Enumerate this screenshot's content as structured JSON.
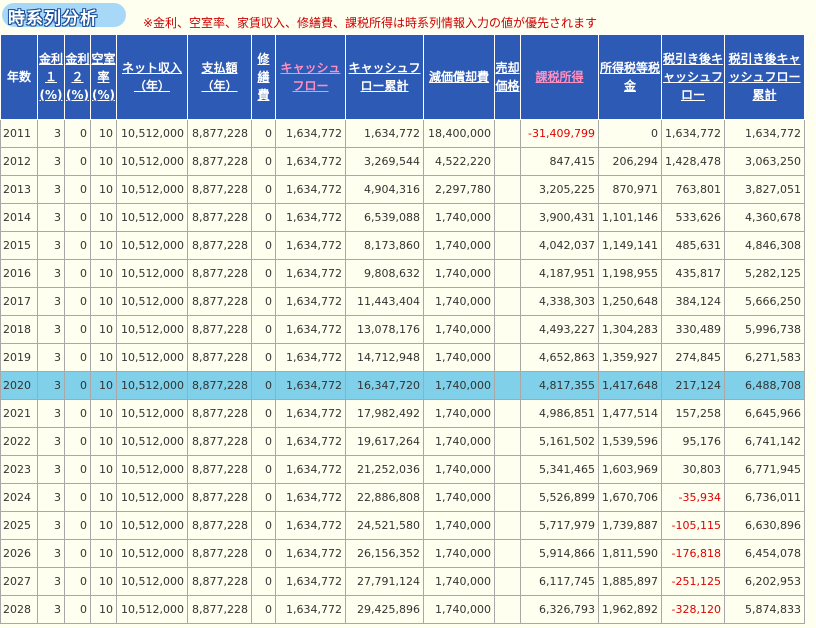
{
  "header": {
    "title": "時系列分析",
    "notice": "※金利、空室率、家賃収入、修繕費、課税所得は時系列情報入力の値が優先されます"
  },
  "columns": [
    {
      "key": "year",
      "label": "年数"
    },
    {
      "key": "rate1",
      "label": "金利１(%)"
    },
    {
      "key": "rate2",
      "label": "金利２(%)"
    },
    {
      "key": "vacancy",
      "label": "空室率(%)"
    },
    {
      "key": "net_income",
      "label": "ネット収入（年）"
    },
    {
      "key": "payment",
      "label": "支払額（年）"
    },
    {
      "key": "repair",
      "label": "修繕費"
    },
    {
      "key": "cash_flow",
      "label": "キャッシュフロー"
    },
    {
      "key": "cash_flow_total",
      "label": "キャッシュフロー累計"
    },
    {
      "key": "depreciation",
      "label": "減価償却費"
    },
    {
      "key": "sale_price",
      "label": "売却価格"
    },
    {
      "key": "taxable_income",
      "label": "課税所得"
    },
    {
      "key": "income_tax",
      "label": "所得税等税金"
    },
    {
      "key": "after_tax_cf",
      "label": "税引き後キャッシュフロー"
    },
    {
      "key": "after_tax_cf_total",
      "label": "税引き後キャッシュフロー累計"
    }
  ],
  "highlight_year": "2020",
  "rows": [
    {
      "year": "2011",
      "rate1": "3",
      "rate2": "0",
      "vacancy": "10",
      "net_income": "10,512,000",
      "payment": "8,877,228",
      "repair": "0",
      "cash_flow": "1,634,772",
      "cash_flow_total": "1,634,772",
      "depreciation": "18,400,000",
      "sale_price": "",
      "taxable_income": "-31,409,799",
      "income_tax": "0",
      "after_tax_cf": "1,634,772",
      "after_tax_cf_total": "1,634,772"
    },
    {
      "year": "2012",
      "rate1": "3",
      "rate2": "0",
      "vacancy": "10",
      "net_income": "10,512,000",
      "payment": "8,877,228",
      "repair": "0",
      "cash_flow": "1,634,772",
      "cash_flow_total": "3,269,544",
      "depreciation": "4,522,220",
      "sale_price": "",
      "taxable_income": "847,415",
      "income_tax": "206,294",
      "after_tax_cf": "1,428,478",
      "after_tax_cf_total": "3,063,250"
    },
    {
      "year": "2013",
      "rate1": "3",
      "rate2": "0",
      "vacancy": "10",
      "net_income": "10,512,000",
      "payment": "8,877,228",
      "repair": "0",
      "cash_flow": "1,634,772",
      "cash_flow_total": "4,904,316",
      "depreciation": "2,297,780",
      "sale_price": "",
      "taxable_income": "3,205,225",
      "income_tax": "870,971",
      "after_tax_cf": "763,801",
      "after_tax_cf_total": "3,827,051"
    },
    {
      "year": "2014",
      "rate1": "3",
      "rate2": "0",
      "vacancy": "10",
      "net_income": "10,512,000",
      "payment": "8,877,228",
      "repair": "0",
      "cash_flow": "1,634,772",
      "cash_flow_total": "6,539,088",
      "depreciation": "1,740,000",
      "sale_price": "",
      "taxable_income": "3,900,431",
      "income_tax": "1,101,146",
      "after_tax_cf": "533,626",
      "after_tax_cf_total": "4,360,678"
    },
    {
      "year": "2015",
      "rate1": "3",
      "rate2": "0",
      "vacancy": "10",
      "net_income": "10,512,000",
      "payment": "8,877,228",
      "repair": "0",
      "cash_flow": "1,634,772",
      "cash_flow_total": "8,173,860",
      "depreciation": "1,740,000",
      "sale_price": "",
      "taxable_income": "4,042,037",
      "income_tax": "1,149,141",
      "after_tax_cf": "485,631",
      "after_tax_cf_total": "4,846,308"
    },
    {
      "year": "2016",
      "rate1": "3",
      "rate2": "0",
      "vacancy": "10",
      "net_income": "10,512,000",
      "payment": "8,877,228",
      "repair": "0",
      "cash_flow": "1,634,772",
      "cash_flow_total": "9,808,632",
      "depreciation": "1,740,000",
      "sale_price": "",
      "taxable_income": "4,187,951",
      "income_tax": "1,198,955",
      "after_tax_cf": "435,817",
      "after_tax_cf_total": "5,282,125"
    },
    {
      "year": "2017",
      "rate1": "3",
      "rate2": "0",
      "vacancy": "10",
      "net_income": "10,512,000",
      "payment": "8,877,228",
      "repair": "0",
      "cash_flow": "1,634,772",
      "cash_flow_total": "11,443,404",
      "depreciation": "1,740,000",
      "sale_price": "",
      "taxable_income": "4,338,303",
      "income_tax": "1,250,648",
      "after_tax_cf": "384,124",
      "after_tax_cf_total": "5,666,250"
    },
    {
      "year": "2018",
      "rate1": "3",
      "rate2": "0",
      "vacancy": "10",
      "net_income": "10,512,000",
      "payment": "8,877,228",
      "repair": "0",
      "cash_flow": "1,634,772",
      "cash_flow_total": "13,078,176",
      "depreciation": "1,740,000",
      "sale_price": "",
      "taxable_income": "4,493,227",
      "income_tax": "1,304,283",
      "after_tax_cf": "330,489",
      "after_tax_cf_total": "5,996,738"
    },
    {
      "year": "2019",
      "rate1": "3",
      "rate2": "0",
      "vacancy": "10",
      "net_income": "10,512,000",
      "payment": "8,877,228",
      "repair": "0",
      "cash_flow": "1,634,772",
      "cash_flow_total": "14,712,948",
      "depreciation": "1,740,000",
      "sale_price": "",
      "taxable_income": "4,652,863",
      "income_tax": "1,359,927",
      "after_tax_cf": "274,845",
      "after_tax_cf_total": "6,271,583"
    },
    {
      "year": "2020",
      "rate1": "3",
      "rate2": "0",
      "vacancy": "10",
      "net_income": "10,512,000",
      "payment": "8,877,228",
      "repair": "0",
      "cash_flow": "1,634,772",
      "cash_flow_total": "16,347,720",
      "depreciation": "1,740,000",
      "sale_price": "",
      "taxable_income": "4,817,355",
      "income_tax": "1,417,648",
      "after_tax_cf": "217,124",
      "after_tax_cf_total": "6,488,708"
    },
    {
      "year": "2021",
      "rate1": "3",
      "rate2": "0",
      "vacancy": "10",
      "net_income": "10,512,000",
      "payment": "8,877,228",
      "repair": "0",
      "cash_flow": "1,634,772",
      "cash_flow_total": "17,982,492",
      "depreciation": "1,740,000",
      "sale_price": "",
      "taxable_income": "4,986,851",
      "income_tax": "1,477,514",
      "after_tax_cf": "157,258",
      "after_tax_cf_total": "6,645,966"
    },
    {
      "year": "2022",
      "rate1": "3",
      "rate2": "0",
      "vacancy": "10",
      "net_income": "10,512,000",
      "payment": "8,877,228",
      "repair": "0",
      "cash_flow": "1,634,772",
      "cash_flow_total": "19,617,264",
      "depreciation": "1,740,000",
      "sale_price": "",
      "taxable_income": "5,161,502",
      "income_tax": "1,539,596",
      "after_tax_cf": "95,176",
      "after_tax_cf_total": "6,741,142"
    },
    {
      "year": "2023",
      "rate1": "3",
      "rate2": "0",
      "vacancy": "10",
      "net_income": "10,512,000",
      "payment": "8,877,228",
      "repair": "0",
      "cash_flow": "1,634,772",
      "cash_flow_total": "21,252,036",
      "depreciation": "1,740,000",
      "sale_price": "",
      "taxable_income": "5,341,465",
      "income_tax": "1,603,969",
      "after_tax_cf": "30,803",
      "after_tax_cf_total": "6,771,945"
    },
    {
      "year": "2024",
      "rate1": "3",
      "rate2": "0",
      "vacancy": "10",
      "net_income": "10,512,000",
      "payment": "8,877,228",
      "repair": "0",
      "cash_flow": "1,634,772",
      "cash_flow_total": "22,886,808",
      "depreciation": "1,740,000",
      "sale_price": "",
      "taxable_income": "5,526,899",
      "income_tax": "1,670,706",
      "after_tax_cf": "-35,934",
      "after_tax_cf_total": "6,736,011"
    },
    {
      "year": "2025",
      "rate1": "3",
      "rate2": "0",
      "vacancy": "10",
      "net_income": "10,512,000",
      "payment": "8,877,228",
      "repair": "0",
      "cash_flow": "1,634,772",
      "cash_flow_total": "24,521,580",
      "depreciation": "1,740,000",
      "sale_price": "",
      "taxable_income": "5,717,979",
      "income_tax": "1,739,887",
      "after_tax_cf": "-105,115",
      "after_tax_cf_total": "6,630,896"
    },
    {
      "year": "2026",
      "rate1": "3",
      "rate2": "0",
      "vacancy": "10",
      "net_income": "10,512,000",
      "payment": "8,877,228",
      "repair": "0",
      "cash_flow": "1,634,772",
      "cash_flow_total": "26,156,352",
      "depreciation": "1,740,000",
      "sale_price": "",
      "taxable_income": "5,914,866",
      "income_tax": "1,811,590",
      "after_tax_cf": "-176,818",
      "after_tax_cf_total": "6,454,078"
    },
    {
      "year": "2027",
      "rate1": "3",
      "rate2": "0",
      "vacancy": "10",
      "net_income": "10,512,000",
      "payment": "8,877,228",
      "repair": "0",
      "cash_flow": "1,634,772",
      "cash_flow_total": "27,791,124",
      "depreciation": "1,740,000",
      "sale_price": "",
      "taxable_income": "6,117,745",
      "income_tax": "1,885,897",
      "after_tax_cf": "-251,125",
      "after_tax_cf_total": "6,202,953"
    },
    {
      "year": "2028",
      "rate1": "3",
      "rate2": "0",
      "vacancy": "10",
      "net_income": "10,512,000",
      "payment": "8,877,228",
      "repair": "0",
      "cash_flow": "1,634,772",
      "cash_flow_total": "29,425,896",
      "depreciation": "1,740,000",
      "sale_price": "",
      "taxable_income": "6,326,793",
      "income_tax": "1,962,892",
      "after_tax_cf": "-328,120",
      "after_tax_cf_total": "5,874,833"
    }
  ]
}
